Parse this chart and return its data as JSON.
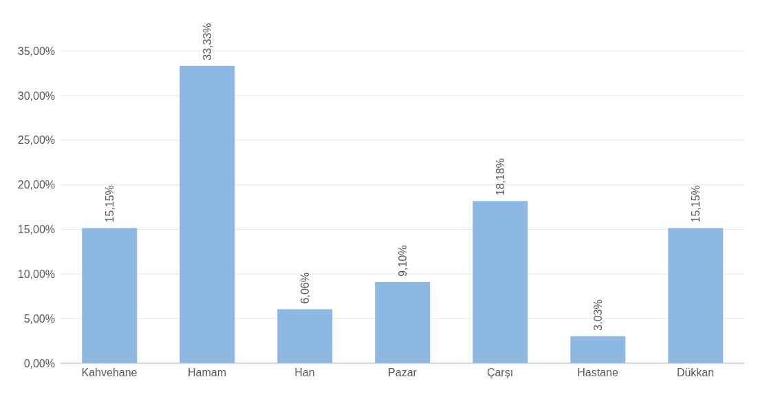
{
  "chart_data": {
    "type": "bar",
    "categories": [
      "Kahvehane",
      "Hamam",
      "Han",
      "Pazar",
      "Çarşı",
      "Hastane",
      "Dükkan"
    ],
    "values": [
      15.15,
      33.33,
      6.06,
      9.1,
      18.18,
      3.03,
      15.15
    ],
    "value_labels": [
      "15,15%",
      "33,33%",
      "6,06%",
      "9,10%",
      "18,18%",
      "3,03%",
      "15,15%"
    ],
    "color": "#8cb8e2",
    "ylim": [
      0,
      35
    ],
    "yticks": [
      {
        "value": 0,
        "label": "0,00%"
      },
      {
        "value": 5,
        "label": "5,00%"
      },
      {
        "value": 10,
        "label": "10,00%"
      },
      {
        "value": 15,
        "label": "15,00%"
      },
      {
        "value": 20,
        "label": "20,00%"
      },
      {
        "value": 25,
        "label": "25,00%"
      },
      {
        "value": 30,
        "label": "30,00%"
      },
      {
        "value": 35,
        "label": "35,00%"
      }
    ],
    "grid": "y"
  }
}
